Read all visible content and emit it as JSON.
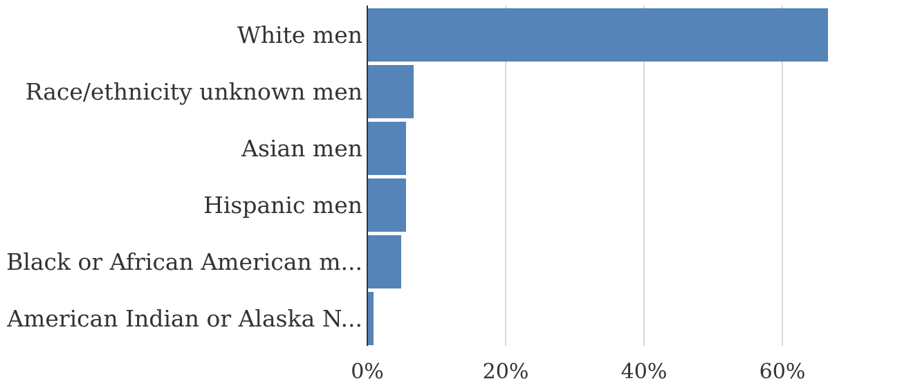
{
  "chart_data": {
    "type": "bar",
    "orientation": "horizontal",
    "categories": [
      "White men",
      "Race/ethnicity unknown men",
      "Asian men",
      "Hispanic men",
      "Black or African American m...",
      "American Indian or Alaska N..."
    ],
    "values": [
      66.6,
      6.7,
      5.6,
      5.6,
      4.9,
      0.9
    ],
    "xlim": [
      0,
      80
    ],
    "xticks": [
      0,
      20,
      40,
      60
    ],
    "xtick_labels": [
      "0%",
      "20%",
      "40%",
      "60%"
    ],
    "grid": true,
    "bar_color": "#5584b8",
    "grid_color": "#cccccc",
    "axis_color": "#333333"
  }
}
